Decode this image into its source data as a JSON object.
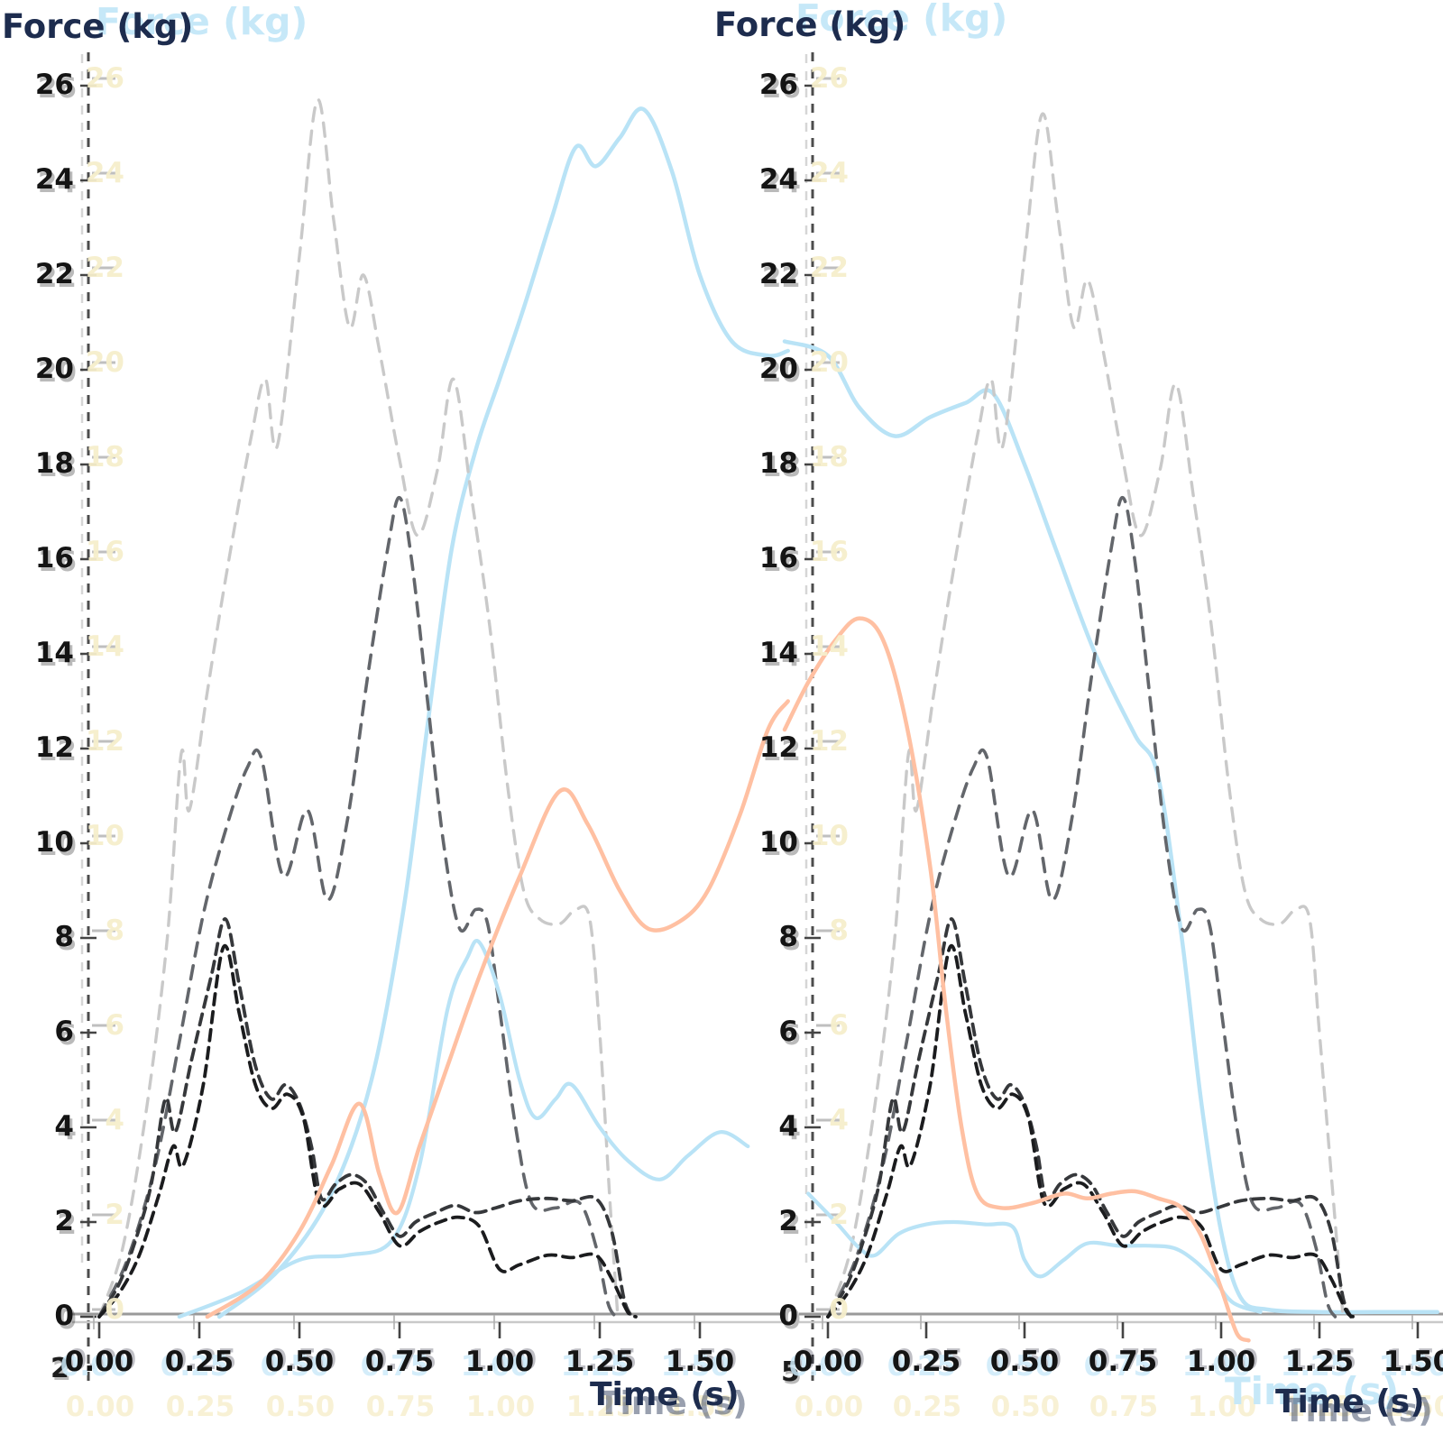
{
  "figure": {
    "background": "#ffffff",
    "panels": [
      {
        "title": "Force (kg)",
        "title_ghost": "Force (kg)",
        "xlabel": "Time (s)",
        "stray_label": "2"
      },
      {
        "title": "Force (kg)",
        "title_ghost": "Force (kg)",
        "xlabel": "Time (s)",
        "xlabel_ghost": "Time (s)",
        "stray_label": "5"
      }
    ],
    "colors": {
      "title_navy": "#1d2c4e",
      "ghost_blue": "#c6e8f8",
      "ghost_yellow": "#f6eecb",
      "tick_text": "#141414",
      "spine": "#4c4c4c",
      "spine_ghost": "#b5b5b5",
      "baseline_dark": "#9a9a9a",
      "baseline_light": "#c9c9c9",
      "tick_dark": "#444444",
      "tick_ghost": "#b0b0b0",
      "gray_lightest": "#c9c9c9",
      "gray_medium": "#63666b",
      "gray_dark": "#36383b",
      "gray_darkest": "#1b1c1e",
      "lightblue": "#b9e3f6",
      "orange": "#ffc0a2"
    }
  },
  "chart_data": [
    {
      "type": "line",
      "title": "Force (kg)",
      "xlabel": "Time (s)",
      "ylabel": "Force (kg)",
      "xlim": [
        0,
        1.55
      ],
      "ylim": [
        0,
        26
      ],
      "grid": false,
      "legend": "none",
      "x_tick_values": [
        0.0,
        0.25,
        0.5,
        0.75,
        1.0,
        1.25,
        1.5
      ],
      "x_tick_labels": [
        "0.00",
        "0.25",
        "0.50",
        "0.75",
        "1.00",
        "1.25",
        "1.50"
      ],
      "y_tick_values": [
        0,
        2,
        4,
        6,
        8,
        10,
        12,
        14,
        16,
        18,
        20,
        22,
        24,
        26
      ],
      "y_tick_labels": [
        "0",
        "2",
        "4",
        "6",
        "8",
        "10",
        "12",
        "14",
        "16",
        "18",
        "20",
        "22",
        "24",
        "26"
      ],
      "series": [
        {
          "name": "dashed-gray-lightest",
          "style": "dashed",
          "color": "#c9c9c9",
          "width": 3.4,
          "dash": "15 11",
          "x": [
            0,
            0.06,
            0.12,
            0.17,
            0.205,
            0.225,
            0.27,
            0.32,
            0.38,
            0.415,
            0.445,
            0.5,
            0.545,
            0.585,
            0.625,
            0.66,
            0.7,
            0.75,
            0.795,
            0.845,
            0.885,
            0.93,
            0.975,
            1.02,
            1.06,
            1.1,
            1.15,
            1.19,
            1.225,
            1.25,
            1.275,
            1.295
          ],
          "y": [
            0,
            1.5,
            4.5,
            8.0,
            11.9,
            10.7,
            13.2,
            15.8,
            18.6,
            19.8,
            18.4,
            22.4,
            25.7,
            23.2,
            20.9,
            22.0,
            20.4,
            18.1,
            16.5,
            17.9,
            19.8,
            17.3,
            14.6,
            11.2,
            9.0,
            8.4,
            8.3,
            8.6,
            8.4,
            6.0,
            2.5,
            0
          ]
        },
        {
          "name": "dashed-gray-medium",
          "style": "dashed",
          "color": "#63666b",
          "width": 3.6,
          "dash": "15 11",
          "x": [
            0,
            0.07,
            0.14,
            0.2,
            0.26,
            0.32,
            0.37,
            0.405,
            0.46,
            0.52,
            0.57,
            0.62,
            0.67,
            0.72,
            0.75,
            0.78,
            0.82,
            0.86,
            0.9,
            0.94,
            0.97,
            1.0,
            1.04,
            1.08,
            1.14,
            1.2,
            1.24,
            1.27,
            1.29
          ],
          "y": [
            0,
            1.2,
            3.2,
            5.8,
            8.5,
            10.4,
            11.6,
            11.8,
            9.3,
            10.7,
            8.8,
            10.5,
            13.5,
            16.2,
            17.3,
            16.0,
            13.0,
            10.0,
            8.2,
            8.6,
            8.3,
            6.5,
            4.0,
            2.4,
            2.3,
            2.4,
            1.5,
            0.3,
            0
          ]
        },
        {
          "name": "dashed-gray-dark",
          "style": "dashed",
          "color": "#36383b",
          "width": 3.8,
          "dash": "12 8",
          "x": [
            0,
            0.05,
            0.09,
            0.13,
            0.165,
            0.19,
            0.23,
            0.28,
            0.315,
            0.35,
            0.39,
            0.43,
            0.465,
            0.5,
            0.53,
            0.555,
            0.59,
            0.63,
            0.67,
            0.71,
            0.75,
            0.79,
            0.84,
            0.89,
            0.94,
            0.99,
            1.05,
            1.12,
            1.18,
            1.24,
            1.28,
            1.31,
            1.33
          ],
          "y": [
            0,
            0.7,
            1.6,
            2.8,
            4.6,
            3.9,
            5.4,
            7.2,
            8.4,
            7.0,
            5.3,
            4.6,
            4.9,
            4.5,
            3.6,
            2.5,
            2.8,
            3.0,
            2.8,
            2.2,
            1.7,
            2.0,
            2.2,
            2.35,
            2.2,
            2.3,
            2.45,
            2.5,
            2.45,
            2.5,
            1.8,
            0.4,
            0
          ]
        },
        {
          "name": "dashed-gray-darkest",
          "style": "dashed",
          "color": "#1b1c1e",
          "width": 3.8,
          "dash": "12 8",
          "x": [
            0,
            0.05,
            0.1,
            0.15,
            0.185,
            0.21,
            0.26,
            0.31,
            0.35,
            0.39,
            0.43,
            0.47,
            0.51,
            0.55,
            0.6,
            0.65,
            0.7,
            0.75,
            0.8,
            0.85,
            0.9,
            0.95,
            1.0,
            1.05,
            1.12,
            1.18,
            1.24,
            1.28,
            1.32,
            1.34
          ],
          "y": [
            0,
            0.5,
            1.3,
            2.6,
            3.6,
            3.2,
            4.9,
            7.8,
            6.4,
            4.9,
            4.4,
            4.7,
            4.2,
            2.4,
            2.7,
            2.8,
            2.2,
            1.5,
            1.8,
            2.0,
            2.1,
            1.9,
            1.0,
            1.1,
            1.3,
            1.25,
            1.3,
            0.8,
            0.1,
            0
          ]
        },
        {
          "name": "solid-lightblue-main",
          "style": "solid",
          "color": "#b9e3f6",
          "width": 4.5,
          "dash": null,
          "x": [
            0.3,
            0.45,
            0.58,
            0.68,
            0.76,
            0.82,
            0.88,
            0.94,
            1.0,
            1.06,
            1.13,
            1.19,
            1.24,
            1.3,
            1.36,
            1.43,
            1.5,
            1.58,
            1.67,
            1.72
          ],
          "y": [
            0,
            1.0,
            2.6,
            5.0,
            8.6,
            12.5,
            16.2,
            18.3,
            19.8,
            21.3,
            23.2,
            24.7,
            24.3,
            24.9,
            25.5,
            24.2,
            22.0,
            20.6,
            20.3,
            20.4
          ]
        },
        {
          "name": "solid-lightblue-secondary",
          "style": "solid",
          "color": "#b9e3f6",
          "width": 4.2,
          "dash": null,
          "x": [
            0.2,
            0.35,
            0.5,
            0.62,
            0.73,
            0.8,
            0.87,
            0.92,
            0.95,
            1.0,
            1.05,
            1.09,
            1.14,
            1.18,
            1.25,
            1.32,
            1.4,
            1.47,
            1.55,
            1.62
          ],
          "y": [
            0,
            0.5,
            1.2,
            1.3,
            1.6,
            3.2,
            6.5,
            7.6,
            7.9,
            6.8,
            5.0,
            4.2,
            4.6,
            4.9,
            4.0,
            3.3,
            2.9,
            3.4,
            3.9,
            3.6
          ]
        },
        {
          "name": "solid-orange",
          "style": "solid",
          "color": "#ffc0a2",
          "width": 4.5,
          "dash": null,
          "x": [
            0.27,
            0.4,
            0.5,
            0.58,
            0.65,
            0.7,
            0.745,
            0.8,
            0.87,
            0.95,
            1.05,
            1.15,
            1.22,
            1.3,
            1.37,
            1.45,
            1.52,
            1.6,
            1.67,
            1.72
          ],
          "y": [
            0,
            0.7,
            1.8,
            3.2,
            4.5,
            3.0,
            2.2,
            3.6,
            5.3,
            7.2,
            9.3,
            11.1,
            10.4,
            9.0,
            8.2,
            8.35,
            9.0,
            10.6,
            12.4,
            13.0
          ]
        }
      ]
    },
    {
      "type": "line",
      "title": "Force (kg)",
      "xlabel": "Time (s)",
      "ylabel": "Force (kg)",
      "xlim": [
        0,
        1.55
      ],
      "ylim": [
        0,
        26
      ],
      "grid": false,
      "legend": "none",
      "x_tick_values": [
        0.0,
        0.25,
        0.5,
        0.75,
        1.0,
        1.25,
        1.5
      ],
      "x_tick_labels": [
        "0.00",
        "0.25",
        "0.50",
        "0.75",
        "1.00",
        "1.25",
        "1.50"
      ],
      "y_tick_values": [
        0,
        2,
        4,
        6,
        8,
        10,
        12,
        14,
        16,
        18,
        20,
        22,
        24,
        26
      ],
      "y_tick_labels": [
        "0",
        "2",
        "4",
        "6",
        "8",
        "10",
        "12",
        "14",
        "16",
        "18",
        "20",
        "22",
        "24",
        "26"
      ],
      "series": [
        {
          "name": "dashed-gray-lightest",
          "style": "dashed",
          "color": "#c9c9c9",
          "width": 3.4,
          "dash": "15 11",
          "x": [
            0,
            0.06,
            0.12,
            0.17,
            0.205,
            0.225,
            0.27,
            0.32,
            0.38,
            0.415,
            0.445,
            0.5,
            0.545,
            0.585,
            0.625,
            0.66,
            0.7,
            0.75,
            0.795,
            0.845,
            0.885,
            0.93,
            0.975,
            1.02,
            1.06,
            1.1,
            1.15,
            1.19,
            1.225,
            1.25,
            1.285,
            1.31
          ],
          "y": [
            0,
            1.5,
            4.5,
            8.0,
            11.9,
            10.7,
            13.2,
            15.8,
            18.6,
            19.8,
            18.4,
            22.4,
            25.4,
            23.2,
            20.9,
            21.9,
            20.4,
            18.1,
            16.5,
            17.9,
            19.7,
            17.3,
            14.6,
            11.2,
            9.0,
            8.4,
            8.3,
            8.6,
            8.4,
            6.0,
            2.5,
            0
          ]
        },
        {
          "name": "dashed-gray-medium",
          "style": "dashed",
          "color": "#63666b",
          "width": 3.6,
          "dash": "15 11",
          "x": [
            0,
            0.07,
            0.14,
            0.2,
            0.26,
            0.32,
            0.37,
            0.405,
            0.46,
            0.52,
            0.57,
            0.62,
            0.67,
            0.72,
            0.75,
            0.78,
            0.82,
            0.86,
            0.9,
            0.94,
            0.97,
            1.0,
            1.04,
            1.08,
            1.14,
            1.2,
            1.24,
            1.27,
            1.29
          ],
          "y": [
            0,
            1.2,
            3.2,
            5.8,
            8.5,
            10.4,
            11.6,
            11.8,
            9.3,
            10.7,
            8.8,
            10.5,
            13.5,
            16.2,
            17.3,
            16.0,
            13.0,
            10.0,
            8.2,
            8.6,
            8.3,
            6.5,
            4.0,
            2.4,
            2.3,
            2.4,
            1.5,
            0.3,
            0
          ]
        },
        {
          "name": "dashed-gray-dark",
          "style": "dashed",
          "color": "#36383b",
          "width": 3.8,
          "dash": "12 8",
          "x": [
            0,
            0.05,
            0.09,
            0.13,
            0.165,
            0.19,
            0.23,
            0.28,
            0.315,
            0.35,
            0.39,
            0.43,
            0.465,
            0.5,
            0.53,
            0.555,
            0.59,
            0.63,
            0.67,
            0.71,
            0.75,
            0.79,
            0.84,
            0.89,
            0.94,
            0.99,
            1.05,
            1.12,
            1.18,
            1.24,
            1.28,
            1.31,
            1.33
          ],
          "y": [
            0,
            0.7,
            1.6,
            2.8,
            4.6,
            3.9,
            5.4,
            7.2,
            8.4,
            7.0,
            5.3,
            4.6,
            4.9,
            4.5,
            3.6,
            2.5,
            2.8,
            3.0,
            2.8,
            2.2,
            1.7,
            2.0,
            2.2,
            2.35,
            2.2,
            2.3,
            2.45,
            2.5,
            2.45,
            2.5,
            1.8,
            0.4,
            0
          ]
        },
        {
          "name": "dashed-gray-darkest",
          "style": "dashed",
          "color": "#1b1c1e",
          "width": 3.8,
          "dash": "12 8",
          "x": [
            0,
            0.05,
            0.1,
            0.15,
            0.185,
            0.21,
            0.26,
            0.31,
            0.35,
            0.39,
            0.43,
            0.47,
            0.51,
            0.55,
            0.6,
            0.65,
            0.7,
            0.75,
            0.8,
            0.85,
            0.9,
            0.95,
            1.0,
            1.05,
            1.12,
            1.18,
            1.24,
            1.28,
            1.32,
            1.34
          ],
          "y": [
            0,
            0.5,
            1.3,
            2.6,
            3.6,
            3.2,
            4.9,
            7.8,
            6.4,
            4.9,
            4.4,
            4.7,
            4.2,
            2.4,
            2.7,
            2.8,
            2.2,
            1.5,
            1.8,
            2.0,
            2.1,
            1.9,
            1.0,
            1.1,
            1.3,
            1.25,
            1.3,
            0.8,
            0.1,
            0
          ]
        },
        {
          "name": "solid-lightblue-main",
          "style": "solid",
          "color": "#b9e3f6",
          "width": 4.5,
          "dash": null,
          "x": [
            -0.11,
            0.0,
            0.08,
            0.17,
            0.26,
            0.35,
            0.42,
            0.5,
            0.58,
            0.68,
            0.78,
            0.84,
            0.9,
            0.95,
            1.0,
            1.05,
            1.12,
            1.25,
            1.4,
            1.55
          ],
          "y": [
            20.6,
            20.3,
            19.2,
            18.6,
            19.0,
            19.3,
            19.5,
            18.0,
            16.2,
            14.0,
            12.3,
            11.4,
            8.0,
            4.5,
            1.8,
            0.4,
            0.15,
            0.1,
            0.1,
            0.1
          ]
        },
        {
          "name": "solid-lightblue-secondary",
          "style": "solid",
          "color": "#b9e3f6",
          "width": 4.2,
          "dash": null,
          "x": [
            -0.05,
            0.02,
            0.08,
            0.12,
            0.18,
            0.25,
            0.32,
            0.4,
            0.47,
            0.5,
            0.54,
            0.6,
            0.66,
            0.74,
            0.82,
            0.88,
            0.93,
            0.98,
            1.03,
            1.1
          ],
          "y": [
            2.6,
            2.0,
            1.45,
            1.3,
            1.75,
            1.95,
            2.0,
            1.95,
            1.9,
            1.2,
            0.85,
            1.2,
            1.55,
            1.5,
            1.5,
            1.45,
            1.2,
            0.8,
            0.3,
            0.1
          ]
        },
        {
          "name": "solid-orange",
          "style": "solid",
          "color": "#ffc0a2",
          "width": 4.5,
          "dash": null,
          "x": [
            -0.11,
            -0.05,
            0.02,
            0.08,
            0.14,
            0.2,
            0.26,
            0.3,
            0.34,
            0.38,
            0.44,
            0.52,
            0.6,
            0.66,
            0.72,
            0.78,
            0.84,
            0.9,
            0.95,
            1.0,
            1.04,
            1.07
          ],
          "y": [
            12.4,
            13.4,
            14.3,
            14.75,
            14.3,
            12.5,
            9.5,
            6.5,
            4.0,
            2.6,
            2.3,
            2.4,
            2.6,
            2.5,
            2.6,
            2.65,
            2.5,
            2.3,
            1.7,
            0.6,
            -0.35,
            -0.5
          ]
        }
      ]
    }
  ]
}
